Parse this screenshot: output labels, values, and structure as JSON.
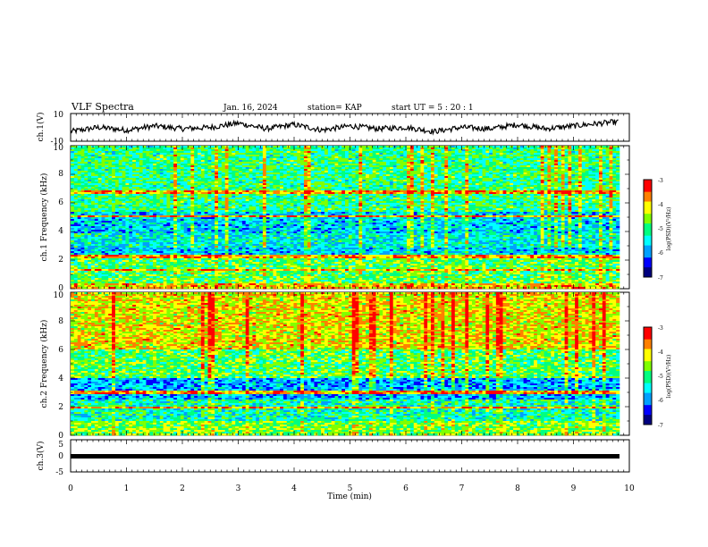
{
  "header": {
    "title": "VLF Spectra",
    "date": "Jan. 16, 2024",
    "station": "station= KAP",
    "start": "start  UT =  5 : 20 : 1"
  },
  "chart_data": [
    {
      "type": "line",
      "panel": "ch1-waveform",
      "ylabel": "ch.1(V)",
      "ylim": [
        -10,
        10
      ],
      "yticks": [
        "10",
        "-10"
      ],
      "xlim": [
        0,
        10
      ],
      "series": [
        {
          "values_note": "",
          "x": [
            0,
            0.5,
            1,
            1.5,
            2,
            2.5,
            3,
            3.5,
            4,
            4.5,
            5,
            5.5,
            6,
            6.5,
            7,
            7.5,
            8,
            8.5,
            9,
            9.5,
            9.8
          ],
          "y": [
            -3,
            0,
            -2,
            1,
            -1,
            0,
            3,
            -1,
            2,
            -2,
            1,
            -1,
            0,
            -3,
            0,
            -1,
            2,
            -1,
            1,
            3,
            4
          ]
        }
      ]
    },
    {
      "type": "heatmap",
      "panel": "ch1-spectrogram",
      "ylabel": "ch.1 Frequency (kHz)",
      "ylim": [
        0,
        10
      ],
      "yticks": [
        "0",
        "2",
        "4",
        "6",
        "8",
        "10"
      ],
      "xlim": [
        0,
        10
      ],
      "colorbar": {
        "label": "log(PSD)(V²/Hz)",
        "range": [
          -7,
          -3
        ],
        "ticks": [
          "-3",
          "-4",
          "-5",
          "-6",
          "-7"
        ]
      }
    },
    {
      "type": "heatmap",
      "panel": "ch2-spectrogram",
      "ylabel": "ch.2 Frequency (kHz)",
      "ylim": [
        0,
        10
      ],
      "yticks": [
        "0",
        "2",
        "4",
        "6",
        "8",
        "10"
      ],
      "xlim": [
        0,
        10
      ],
      "colorbar": {
        "label": "log(PSD)(V²/Hz)",
        "range": [
          -7,
          -3
        ],
        "ticks": [
          "-3",
          "-4",
          "-5",
          "-6",
          "-7"
        ]
      }
    },
    {
      "type": "line",
      "panel": "ch3-waveform",
      "ylabel": "ch.3(V)",
      "ylim": [
        -5,
        5
      ],
      "yticks": [
        "5",
        "0",
        "-5"
      ],
      "xlim": [
        0,
        10
      ],
      "xlabel": "Time  (min)",
      "xticks": [
        "0",
        "1",
        "2",
        "3",
        "4",
        "5",
        "6",
        "7",
        "8",
        "9",
        "10"
      ]
    }
  ],
  "colors": {
    "axis": "#000000",
    "colormap": [
      "#00007f",
      "#0000ff",
      "#00a0ff",
      "#00ffff",
      "#00ff80",
      "#80ff00",
      "#ffff00",
      "#ff8000",
      "#ff0000"
    ]
  }
}
